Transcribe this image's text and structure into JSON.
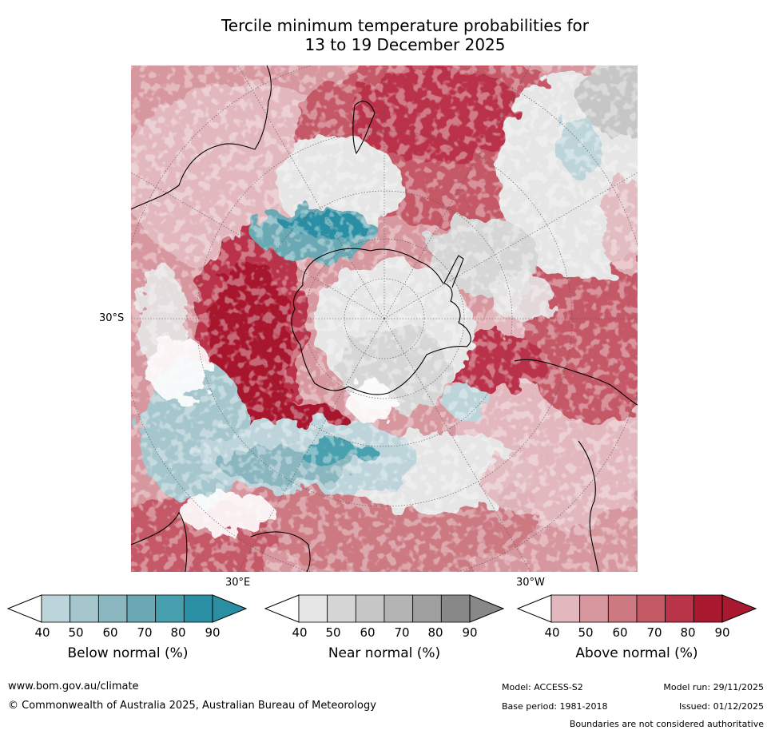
{
  "title": {
    "line1": "Tercile minimum temperature probabilities for",
    "line2": "13 to 19 December 2025"
  },
  "map": {
    "lat_label": "30°S",
    "lon_label_east": "30°E",
    "lon_label_west": "30°W"
  },
  "colorbars": [
    {
      "label": "Below normal (%)",
      "ticks": [
        "40",
        "50",
        "60",
        "70",
        "80",
        "90"
      ],
      "colors": [
        "#bcd4da",
        "#a5c6cd",
        "#8ab6c0",
        "#6aa9b4",
        "#48a0ae",
        "#2b8fa4"
      ]
    },
    {
      "label": "Near normal (%)",
      "ticks": [
        "40",
        "50",
        "60",
        "70",
        "80",
        "90"
      ],
      "colors": [
        "#e6e6e6",
        "#d6d6d6",
        "#c6c6c6",
        "#b4b4b4",
        "#a0a0a0",
        "#888888"
      ]
    },
    {
      "label": "Above normal (%)",
      "ticks": [
        "40",
        "50",
        "60",
        "70",
        "80",
        "90"
      ],
      "colors": [
        "#e2b8be",
        "#d7979f",
        "#cc7982",
        "#c45966",
        "#b93349",
        "#a8182e"
      ]
    }
  ],
  "footer": {
    "website": "www.bom.gov.au/climate",
    "copyright": "© Commonwealth of Australia 2025, Australian Bureau of Meteorology",
    "model": "Model: ACCESS-S2",
    "model_run": "Model run: 29/11/2025",
    "base_period": "Base period: 1981-2018",
    "issued": "Issued: 01/12/2025",
    "disclaimer": "Boundaries are not considered authoritative"
  }
}
